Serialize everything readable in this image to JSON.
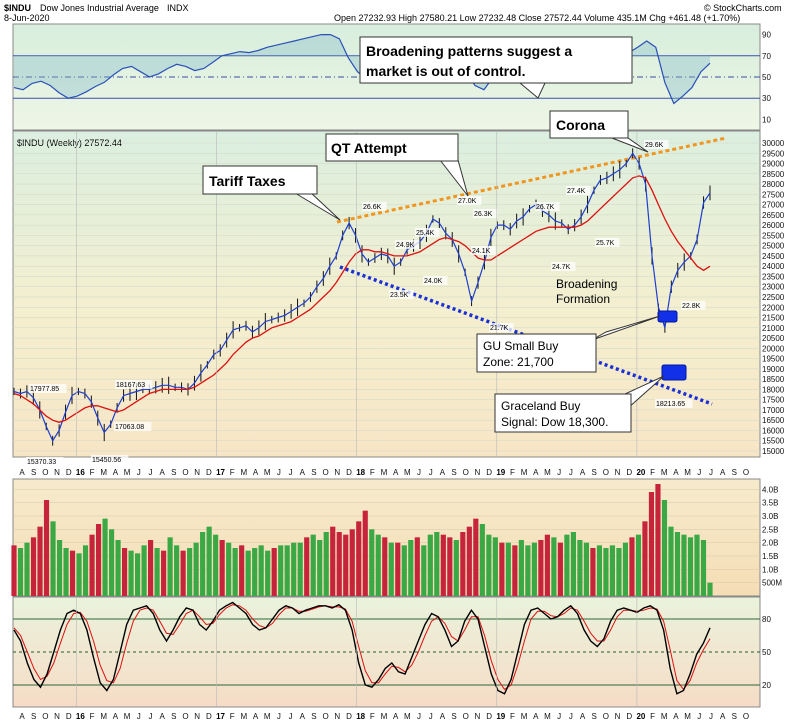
{
  "header": {
    "symbol": "$INDU",
    "name": "Dow Jones Industrial Average",
    "exchange": "INDX",
    "date": "8-Jun-2020",
    "quote": "Open 27232.93  High 27580.21  Low 27232.48  Close 27572.44  Volume 435.1M  Chg +461.48 (+1.70%)",
    "credit": "© StockCharts.com",
    "price_label": "$INDU (Weekly) 27572.44"
  },
  "colors": {
    "price_line": "#000000",
    "ma_line": "#dd1111",
    "short_ma": "#1f3fd0",
    "rsi_line": "#2a4fb8",
    "upper_trend": "#f0951e",
    "lower_trend": "#1b2fd8",
    "volume_up": "#3aa844",
    "volume_down": "#c6243a",
    "buy_box": "#1130e8"
  },
  "chart_data": [
    {
      "type": "line",
      "panel": "rsi",
      "ylim": [
        0,
        100
      ],
      "ticks": [
        "10",
        "30",
        "50",
        "70",
        "90"
      ],
      "guides": [
        30,
        50,
        70
      ],
      "values": [
        40,
        38,
        44,
        46,
        42,
        35,
        30,
        32,
        36,
        41,
        45,
        52,
        58,
        60,
        55,
        50,
        53,
        58,
        62,
        60,
        56,
        58,
        64,
        70,
        72,
        74,
        73,
        75,
        78,
        80,
        82,
        84,
        86,
        88,
        90,
        90,
        86,
        68,
        55,
        48,
        52,
        50,
        47,
        54,
        58,
        62,
        60,
        56,
        58,
        60,
        55,
        42,
        38,
        50,
        58,
        62,
        65,
        64,
        62,
        60,
        64,
        66,
        62,
        64,
        68,
        70,
        72,
        74,
        73,
        78,
        84,
        78,
        45,
        25,
        32,
        40,
        55,
        63
      ]
    },
    {
      "type": "line",
      "panel": "price",
      "ylim": [
        15000,
        30000
      ],
      "ticks": [
        "15000",
        "15500",
        "16000",
        "16500",
        "17000",
        "17500",
        "18000",
        "18500",
        "19000",
        "19500",
        "20000",
        "20500",
        "21000",
        "21500",
        "22000",
        "22500",
        "23000",
        "23500",
        "24000",
        "24500",
        "25000",
        "25500",
        "26000",
        "26500",
        "27000",
        "27500",
        "28000",
        "28500",
        "29000",
        "29500",
        "30000"
      ],
      "values": [
        17900,
        17800,
        17900,
        17600,
        17000,
        16200,
        15500,
        16000,
        16900,
        17700,
        17900,
        17800,
        17400,
        16600,
        15900,
        16300,
        17100,
        17700,
        17800,
        17900,
        18000,
        18000,
        18100,
        18200,
        18200,
        18100,
        18100,
        18000,
        18300,
        18800,
        19200,
        19700,
        19900,
        20400,
        20900,
        21000,
        21100,
        20800,
        21000,
        21300,
        21400,
        21500,
        21600,
        21800,
        22000,
        22200,
        22500,
        23000,
        23400,
        24000,
        24500,
        25500,
        26100,
        25500,
        24600,
        24200,
        24400,
        24600,
        24500,
        24000,
        24200,
        24800,
        25000,
        25200,
        25600,
        26300,
        26100,
        25600,
        25300,
        24600,
        23700,
        22300,
        23200,
        24200,
        25400,
        26000,
        26000,
        25800,
        26200,
        26400,
        26800,
        27000,
        26700,
        26500,
        26200,
        26100,
        25800,
        26000,
        26400,
        27000,
        27700,
        28200,
        28300,
        28500,
        28700,
        29000,
        29500,
        29000,
        28000,
        24500,
        22000,
        21000,
        23000,
        23800,
        24200,
        24500,
        25300,
        27100,
        27572
      ],
      "ma_values": [
        17800,
        17700,
        17500,
        17300,
        17000,
        16700,
        16500,
        16400,
        16500,
        16700,
        16900,
        17100,
        17200,
        17200,
        17100,
        17000,
        16900,
        17000,
        17200,
        17400,
        17600,
        17800,
        17900,
        18000,
        18000,
        18000,
        18000,
        18000,
        18100,
        18300,
        18500,
        18700,
        19000,
        19300,
        19700,
        20000,
        20300,
        20500,
        20600,
        20800,
        21000,
        21100,
        21200,
        21300,
        21500,
        21700,
        21900,
        22200,
        22500,
        22800,
        23200,
        23700,
        24200,
        24600,
        24800,
        24800,
        24700,
        24700,
        24600,
        24500,
        24500,
        24500,
        24600,
        24700,
        24900,
        25100,
        25300,
        25400,
        25300,
        25200,
        25000,
        24700,
        24400,
        24300,
        24300,
        24500,
        24700,
        24900,
        25100,
        25300,
        25500,
        25700,
        25800,
        25900,
        25900,
        25900,
        25900,
        25900,
        26000,
        26200,
        26500,
        26800,
        27100,
        27400,
        27700,
        28000,
        28300,
        28400,
        28300,
        27700,
        27000,
        26300,
        25700,
        25200,
        24800,
        24400,
        24000,
        23800,
        24000
      ]
    },
    {
      "type": "bar",
      "panel": "volume",
      "ylim": [
        0,
        4.2
      ],
      "ticks": [
        "500M",
        "1.0B",
        "1.5B",
        "2.0B",
        "2.5B",
        "3.0B",
        "3.5B",
        "4.0B"
      ],
      "values": [
        1.9,
        1.8,
        2.0,
        2.2,
        2.6,
        3.6,
        2.8,
        2.1,
        1.8,
        1.7,
        1.6,
        1.9,
        2.3,
        2.7,
        2.9,
        2.5,
        2.1,
        1.8,
        1.7,
        1.6,
        1.9,
        2.1,
        1.8,
        1.7,
        2.2,
        1.9,
        1.7,
        1.8,
        2.0,
        2.4,
        2.6,
        2.3,
        2.1,
        2.0,
        1.8,
        1.9,
        1.7,
        1.8,
        1.9,
        1.7,
        1.8,
        1.9,
        1.9,
        2.0,
        2.0,
        2.2,
        2.3,
        2.1,
        2.4,
        2.6,
        2.4,
        2.3,
        2.5,
        2.8,
        3.2,
        2.5,
        2.3,
        2.2,
        2.0,
        2.0,
        1.9,
        2.1,
        2.2,
        1.9,
        2.3,
        2.4,
        2.3,
        2.2,
        2.1,
        2.4,
        2.6,
        2.9,
        2.7,
        2.3,
        2.2,
        2.0,
        2.0,
        1.9,
        2.1,
        1.9,
        2.0,
        2.1,
        2.3,
        2.2,
        2.0,
        2.3,
        2.4,
        2.1,
        2.0,
        1.8,
        1.9,
        1.8,
        1.9,
        1.8,
        2.0,
        2.2,
        2.3,
        2.8,
        3.9,
        4.2,
        3.6,
        2.6,
        2.4,
        2.3,
        2.2,
        2.3,
        2.1,
        0.5
      ],
      "up": [
        0,
        1,
        1,
        0,
        0,
        0,
        1,
        1,
        1,
        0,
        1,
        1,
        0,
        0,
        1,
        1,
        1,
        0,
        1,
        1,
        1,
        0,
        1,
        0,
        1,
        1,
        0,
        1,
        1,
        1,
        1,
        1,
        0,
        1,
        1,
        0,
        1,
        1,
        1,
        1,
        0,
        1,
        1,
        1,
        1,
        0,
        1,
        1,
        1,
        0,
        0,
        0,
        0,
        0,
        0,
        1,
        1,
        0,
        1,
        0,
        1,
        1,
        0,
        1,
        1,
        1,
        0,
        0,
        1,
        0,
        0,
        0,
        1,
        1,
        1,
        0,
        1,
        0,
        1,
        1,
        1,
        0,
        0,
        1,
        0,
        1,
        1,
        1,
        1,
        0,
        1,
        1,
        1,
        1,
        1,
        0,
        1,
        0,
        0,
        0,
        1,
        1,
        1,
        1,
        1,
        1,
        1,
        1
      ]
    },
    {
      "type": "line",
      "panel": "stochastic",
      "ylim": [
        0,
        100
      ],
      "ticks": [
        "20",
        "50",
        "80"
      ],
      "guides": [
        20,
        50,
        80
      ],
      "values": [
        70,
        60,
        40,
        25,
        18,
        30,
        50,
        70,
        85,
        88,
        85,
        70,
        45,
        22,
        15,
        25,
        50,
        75,
        88,
        90,
        92,
        85,
        70,
        60,
        70,
        82,
        90,
        88,
        75,
        70,
        78,
        88,
        92,
        95,
        90,
        85,
        75,
        70,
        72,
        80,
        88,
        92,
        90,
        85,
        88,
        90,
        92,
        92,
        90,
        93,
        88,
        70,
        40,
        20,
        18,
        25,
        35,
        40,
        32,
        30,
        45,
        60,
        75,
        85,
        82,
        70,
        55,
        60,
        78,
        88,
        80,
        55,
        30,
        15,
        12,
        25,
        50,
        75,
        88,
        90,
        85,
        80,
        82,
        88,
        92,
        85,
        70,
        60,
        55,
        62,
        78,
        88,
        90,
        88,
        86,
        90,
        92,
        88,
        70,
        35,
        12,
        15,
        30,
        48,
        58,
        72
      ],
      "signal": [
        72,
        65,
        50,
        35,
        25,
        28,
        40,
        58,
        75,
        85,
        86,
        78,
        60,
        38,
        24,
        22,
        35,
        58,
        78,
        88,
        90,
        88,
        78,
        67,
        66,
        75,
        85,
        88,
        82,
        75,
        76,
        84,
        90,
        93,
        92,
        88,
        80,
        74,
        72,
        76,
        84,
        90,
        90,
        87,
        87,
        89,
        91,
        92,
        91,
        91,
        89,
        78,
        55,
        33,
        22,
        22,
        30,
        37,
        36,
        32,
        38,
        50,
        65,
        78,
        82,
        76,
        64,
        60,
        70,
        82,
        82,
        65,
        42,
        25,
        16,
        20,
        38,
        60,
        80,
        87,
        87,
        83,
        82,
        85,
        90,
        88,
        78,
        67,
        60,
        60,
        70,
        82,
        88,
        88,
        87,
        88,
        90,
        89,
        78,
        52,
        24,
        16,
        24,
        40,
        52,
        62
      ]
    }
  ],
  "x_axis": [
    "A",
    "S",
    "O",
    "N",
    "D",
    "16",
    "F",
    "M",
    "A",
    "M",
    "J",
    "J",
    "A",
    "S",
    "O",
    "N",
    "D",
    "17",
    "F",
    "M",
    "A",
    "M",
    "J",
    "J",
    "A",
    "S",
    "O",
    "N",
    "D",
    "18",
    "F",
    "M",
    "A",
    "M",
    "J",
    "J",
    "A",
    "S",
    "O",
    "N",
    "D",
    "19",
    "F",
    "M",
    "A",
    "M",
    "J",
    "J",
    "A",
    "S",
    "O",
    "N",
    "D",
    "20",
    "F",
    "M",
    "A",
    "M",
    "J",
    "J",
    "A",
    "S",
    "O"
  ],
  "year_labels": [
    "16",
    "17",
    "18",
    "19",
    "20"
  ],
  "price_labels": [
    "17977.85",
    "15370.33",
    "15450.56",
    "18167.63",
    "17063.08",
    "26.6K",
    "24.9K",
    "25.4K",
    "23.5K",
    "24.0K",
    "27.0K",
    "26.3K",
    "24.1K",
    "21.7K",
    "26.7K",
    "24.7K",
    "27.4K",
    "25.7K",
    "29.6K",
    "22.8K",
    "18213.65"
  ],
  "annotations": {
    "broadening_patterns": [
      "Broadening patterns suggest a",
      "market is out of control."
    ],
    "tariff": "Tariff Taxes",
    "qt": "QT Attempt",
    "corona": "Corona",
    "broadening_formation": [
      "Broadening",
      "Formation"
    ],
    "gu_zone": [
      "GU Small Buy",
      "Zone: 21,700"
    ],
    "graceland": [
      "Graceland Buy",
      "Signal: Dow 18,300."
    ]
  }
}
